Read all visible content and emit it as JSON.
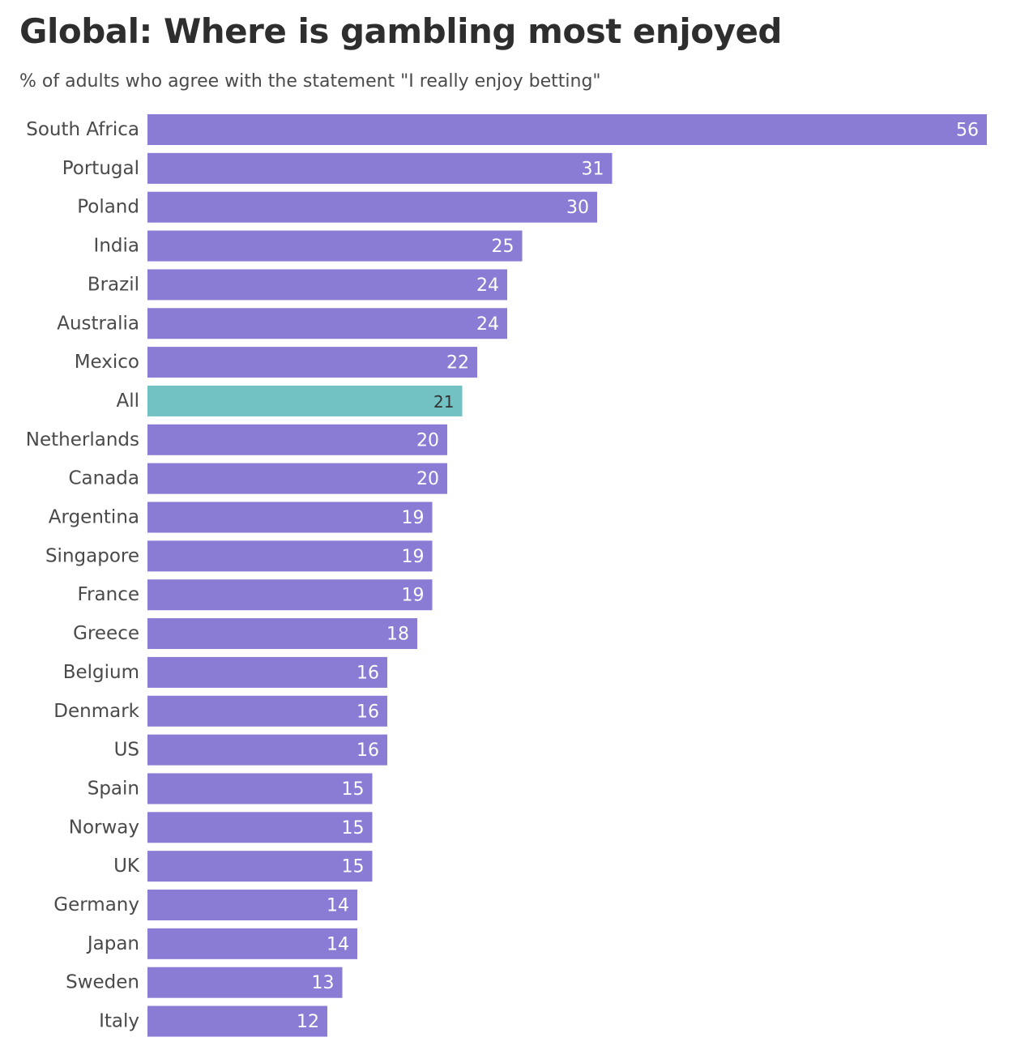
{
  "chart_data": {
    "type": "bar",
    "orientation": "horizontal",
    "title": "Global: Where is gambling most enjoyed",
    "subtitle": "% of adults who agree with the statement \"I really enjoy betting\"",
    "categories": [
      "South Africa",
      "Portugal",
      "Poland",
      "India",
      "Brazil",
      "Australia",
      "Mexico",
      "All",
      "Netherlands",
      "Canada",
      "Argentina",
      "Singapore",
      "France",
      "Greece",
      "Belgium",
      "Denmark",
      "US",
      "Spain",
      "Norway",
      "UK",
      "Germany",
      "Japan",
      "Sweden",
      "Italy"
    ],
    "values": [
      56,
      31,
      30,
      25,
      24,
      24,
      22,
      21,
      20,
      20,
      19,
      19,
      19,
      18,
      16,
      16,
      16,
      15,
      15,
      15,
      14,
      14,
      13,
      12
    ],
    "highlight_category": "All",
    "xlim": [
      0,
      56
    ],
    "grid": false,
    "data_labels": true,
    "colors": {
      "bar": "#8a7bd4",
      "highlight": "#72c2c4",
      "label_on_bar": "#ffffff",
      "label_on_highlight": "#333333"
    }
  }
}
